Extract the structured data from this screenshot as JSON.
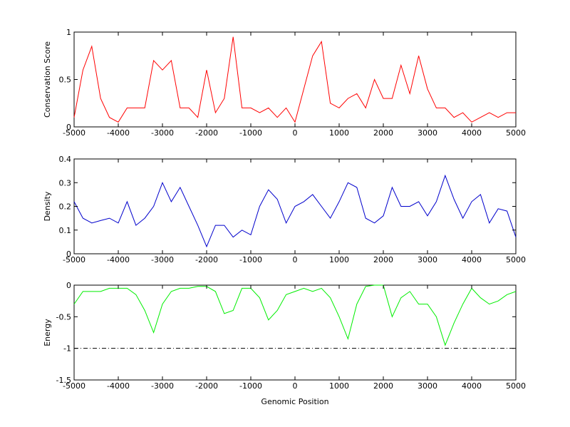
{
  "chart_data": [
    {
      "type": "line",
      "ylabel": "Conservation Score",
      "x": [
        -5000,
        -4800,
        -4600,
        -4400,
        -4200,
        -4000,
        -3800,
        -3600,
        -3400,
        -3200,
        -3000,
        -2800,
        -2600,
        -2400,
        -2200,
        -2000,
        -1800,
        -1600,
        -1400,
        -1200,
        -1000,
        -800,
        -600,
        -400,
        -200,
        0,
        200,
        400,
        600,
        800,
        1000,
        1200,
        1400,
        1600,
        1800,
        2000,
        2200,
        2400,
        2600,
        2800,
        3000,
        3200,
        3400,
        3600,
        3800,
        4000,
        4200,
        4400,
        4600,
        4800,
        5000
      ],
      "series": [
        {
          "color": "#ff0000",
          "values": [
            0.1,
            0.6,
            0.85,
            0.3,
            0.1,
            0.05,
            0.2,
            0.2,
            0.2,
            0.7,
            0.6,
            0.7,
            0.2,
            0.2,
            0.1,
            0.6,
            0.15,
            0.3,
            0.95,
            0.2,
            0.2,
            0.15,
            0.2,
            0.1,
            0.2,
            0.05,
            0.4,
            0.75,
            0.9,
            0.25,
            0.2,
            0.3,
            0.35,
            0.2,
            0.5,
            0.3,
            0.3,
            0.65,
            0.35,
            0.75,
            0.4,
            0.2,
            0.2,
            0.1,
            0.15,
            0.05,
            0.1,
            0.15,
            0.1,
            0.15,
            0.15
          ]
        }
      ],
      "xlim": [
        -5000,
        5000
      ],
      "xticks": [
        -5000,
        -4000,
        -3000,
        -2000,
        -1000,
        0,
        1000,
        2000,
        3000,
        4000,
        5000
      ],
      "ylim": [
        0,
        1
      ],
      "yticks": [
        0,
        0.5,
        1
      ]
    },
    {
      "type": "line",
      "ylabel": "Density",
      "x": [
        -5000,
        -4800,
        -4600,
        -4400,
        -4200,
        -4000,
        -3800,
        -3600,
        -3400,
        -3200,
        -3000,
        -2800,
        -2600,
        -2400,
        -2200,
        -2000,
        -1800,
        -1600,
        -1400,
        -1200,
        -1000,
        -800,
        -600,
        -400,
        -200,
        0,
        200,
        400,
        600,
        800,
        1000,
        1200,
        1400,
        1600,
        1800,
        2000,
        2200,
        2400,
        2600,
        2800,
        3000,
        3200,
        3400,
        3600,
        3800,
        4000,
        4200,
        4400,
        4600,
        4800,
        5000
      ],
      "series": [
        {
          "color": "#0000cc",
          "values": [
            0.22,
            0.15,
            0.13,
            0.14,
            0.15,
            0.13,
            0.22,
            0.12,
            0.15,
            0.2,
            0.3,
            0.22,
            0.28,
            0.2,
            0.12,
            0.03,
            0.12,
            0.12,
            0.07,
            0.1,
            0.08,
            0.2,
            0.27,
            0.23,
            0.13,
            0.2,
            0.22,
            0.25,
            0.2,
            0.15,
            0.22,
            0.3,
            0.28,
            0.15,
            0.13,
            0.16,
            0.28,
            0.2,
            0.2,
            0.22,
            0.16,
            0.22,
            0.33,
            0.23,
            0.15,
            0.22,
            0.25,
            0.13,
            0.19,
            0.18,
            0.07
          ]
        }
      ],
      "xlim": [
        -5000,
        5000
      ],
      "xticks": [
        -5000,
        -4000,
        -3000,
        -2000,
        -1000,
        0,
        1000,
        2000,
        3000,
        4000,
        5000
      ],
      "ylim": [
        0,
        0.4
      ],
      "yticks": [
        0,
        0.1,
        0.2,
        0.3,
        0.4
      ]
    },
    {
      "type": "line",
      "ylabel": "Energy",
      "xlabel": "Genomic Position",
      "hline": -1,
      "x": [
        -5000,
        -4800,
        -4600,
        -4400,
        -4200,
        -4000,
        -3800,
        -3600,
        -3400,
        -3200,
        -3000,
        -2800,
        -2600,
        -2400,
        -2200,
        -2000,
        -1800,
        -1600,
        -1400,
        -1200,
        -1000,
        -800,
        -600,
        -400,
        -200,
        0,
        200,
        400,
        600,
        800,
        1000,
        1200,
        1400,
        1600,
        1800,
        2000,
        2200,
        2400,
        2600,
        2800,
        3000,
        3200,
        3400,
        3600,
        3800,
        4000,
        4200,
        4400,
        4600,
        4800,
        5000
      ],
      "series": [
        {
          "color": "#00ee00",
          "values": [
            -0.3,
            -0.1,
            -0.1,
            -0.1,
            -0.05,
            -0.05,
            -0.05,
            -0.15,
            -0.4,
            -0.75,
            -0.3,
            -0.1,
            -0.05,
            -0.05,
            -0.02,
            -0.02,
            -0.1,
            -0.45,
            -0.4,
            -0.05,
            -0.05,
            -0.2,
            -0.55,
            -0.4,
            -0.15,
            -0.1,
            -0.05,
            -0.1,
            -0.05,
            -0.2,
            -0.5,
            -0.85,
            -0.3,
            -0.02,
            0,
            0,
            -0.5,
            -0.2,
            -0.1,
            -0.3,
            -0.3,
            -0.5,
            -0.95,
            -0.6,
            -0.3,
            -0.05,
            -0.2,
            -0.3,
            -0.25,
            -0.15,
            -0.1
          ]
        }
      ],
      "xlim": [
        -5000,
        5000
      ],
      "xticks": [
        -5000,
        -4000,
        -3000,
        -2000,
        -1000,
        0,
        1000,
        2000,
        3000,
        4000,
        5000
      ],
      "ylim": [
        -1.5,
        0
      ],
      "yticks": [
        -1.5,
        -1,
        -0.5,
        0
      ]
    }
  ]
}
